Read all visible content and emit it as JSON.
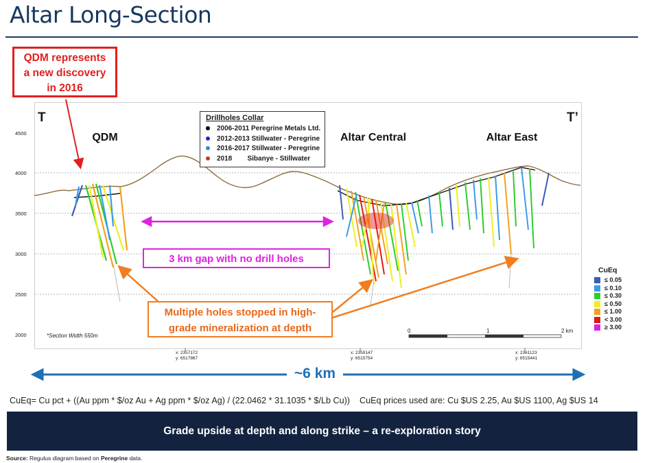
{
  "title": "Altar Long-Section",
  "callout_qdm": [
    "QDM represents",
    "a new discovery",
    "in 2016"
  ],
  "section_ends": {
    "left": "T",
    "right": "T’"
  },
  "section_labels": {
    "qdm": "QDM",
    "central": "Altar Central",
    "east": "Altar East"
  },
  "drillholes_legend": {
    "title": "Drillholes Collar",
    "items": [
      {
        "label": "2006-2011 Peregrine Metals Ltd.",
        "color": "#000000"
      },
      {
        "label": "2012-2013 Stillwater - Peregrine",
        "color": "#1c2bd1"
      },
      {
        "label": "2016-2017 Stillwater - Peregrine",
        "color": "#2a8be0"
      },
      {
        "label": "2018        Sibanye - Stillwater",
        "color": "#c0392b"
      }
    ]
  },
  "elevation_ticks": [
    "4500",
    "4000",
    "3500",
    "3000",
    "2500",
    "2000"
  ],
  "section_width_note": "*Section Width 550m",
  "gap_note": "3 km gap with no drill holes",
  "stopped_note": [
    "Multiple holes stopped in high-",
    "grade mineralization at depth"
  ],
  "scale_bar": {
    "start": "0",
    "mid": "1",
    "end": "2 km"
  },
  "coordinates": [
    {
      "x": "x: 2357172",
      "y": "y: 6517867"
    },
    {
      "x": "x: 2359147",
      "y": "y: 6515754"
    },
    {
      "x": "x: 2361123",
      "y": "y: 6515441"
    }
  ],
  "distance_label": "~6 km",
  "cueq_legend": {
    "title": "CuEq",
    "items": [
      {
        "label": "≤ 0.05",
        "color": "#3b5bb5"
      },
      {
        "label": "≤ 0.10",
        "color": "#3a9be8"
      },
      {
        "label": "≤ 0.30",
        "color": "#2ecc2e"
      },
      {
        "label": "≤ 0.50",
        "color": "#eeee22"
      },
      {
        "label": "≤ 1.00",
        "color": "#f5a020"
      },
      {
        "label": "< 3.00",
        "color": "#e01818"
      },
      {
        "label": "≥ 3.00",
        "color": "#e020e0"
      }
    ]
  },
  "formula": "CuEq= Cu pct + ((Au ppm * $/oz Au + Ag ppm * $/oz Ag) / (22.0462 * 31.1035 * $/Lb Cu))    CuEq prices used are: Cu $US 2.25, Au $US 1100, Ag $US 14",
  "banner": "Grade upside at depth and along strike – a re-exploration story",
  "source_prefix": "Source:",
  "source_text": " Regulus diagram based on ",
  "source_bold": "Peregrine",
  "source_suffix": " data.",
  "colors": {
    "navy": "#13233f",
    "red": "#e02020",
    "magenta": "#e022e0",
    "orange": "#f07d20",
    "blue_arrow": "#1f6fb5",
    "topography": "#8b6b3a"
  }
}
